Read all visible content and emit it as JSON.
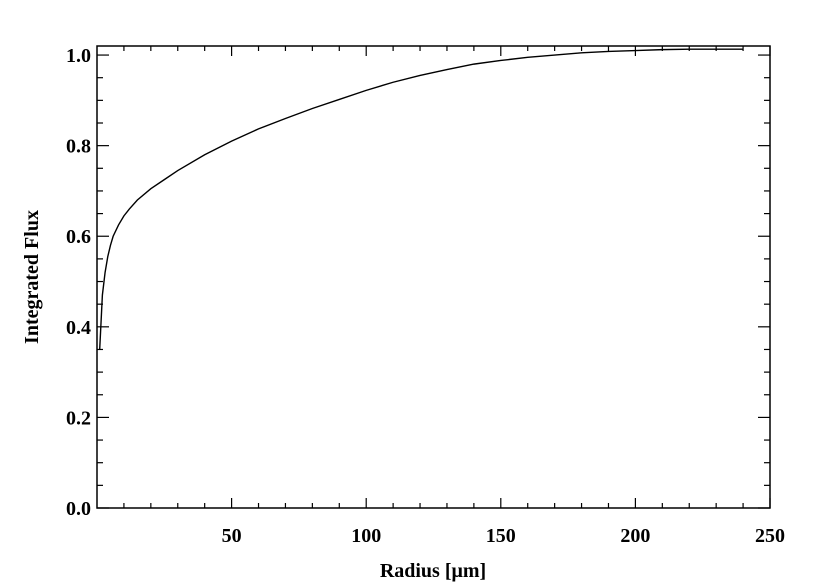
{
  "chart_data": {
    "type": "line",
    "title": "",
    "xlabel": "Radius [μm]",
    "ylabel": "Integrated Flux",
    "xlim": [
      0,
      250
    ],
    "ylim": [
      0.0,
      1.02
    ],
    "grid": false,
    "xticks": [
      50,
      100,
      150,
      200,
      250
    ],
    "xtick_labels": [
      "50",
      "100",
      "150",
      "200",
      "250"
    ],
    "yticks": [
      0.0,
      0.2,
      0.4,
      0.6,
      0.8,
      1.0
    ],
    "ytick_labels": [
      "0.0",
      "0.2",
      "0.4",
      "0.6",
      "0.8",
      "1.0"
    ],
    "series": [
      {
        "x": [
          1,
          1.5,
          2,
          3,
          4,
          5,
          6,
          8,
          10,
          12,
          15,
          20,
          25,
          30,
          40,
          50,
          60,
          70,
          80,
          90,
          100,
          110,
          120,
          130,
          140,
          150,
          160,
          170,
          180,
          190,
          200,
          210,
          220,
          230,
          240
        ],
        "y": [
          0.35,
          0.41,
          0.47,
          0.52,
          0.555,
          0.58,
          0.6,
          0.625,
          0.645,
          0.66,
          0.68,
          0.705,
          0.725,
          0.745,
          0.78,
          0.81,
          0.837,
          0.86,
          0.882,
          0.902,
          0.922,
          0.94,
          0.955,
          0.968,
          0.98,
          0.988,
          0.995,
          1.0,
          1.005,
          1.008,
          1.01,
          1.012,
          1.013,
          1.013,
          1.013
        ]
      }
    ]
  }
}
